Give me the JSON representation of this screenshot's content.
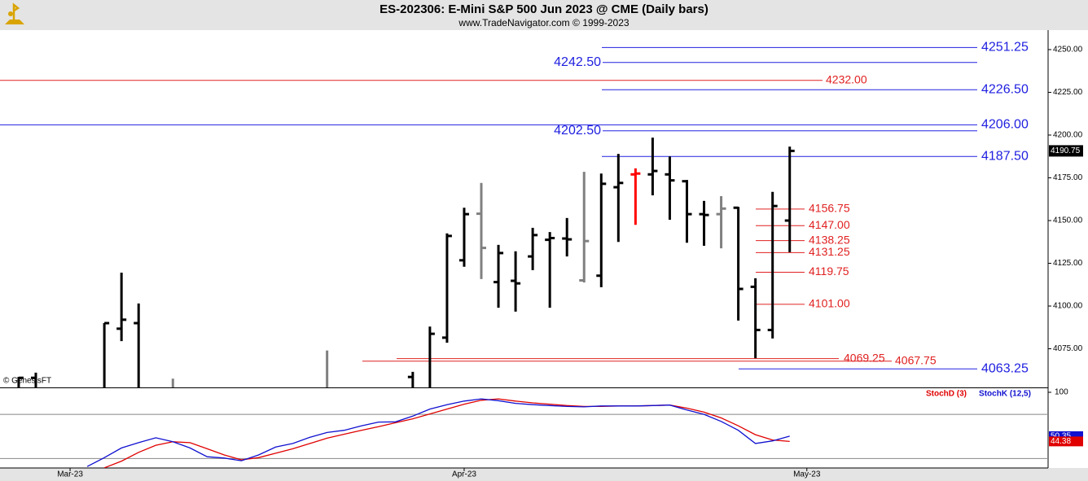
{
  "chart_data": [
    {
      "type": "ohlc",
      "title": "ES-202306:  E-Mini S&P 500 Jun 2023 @ CME  (Daily bars)",
      "subtitle": "www.TradeNavigator.com © 1999-2023",
      "watermark": "© GenesisFT",
      "x": [
        -3,
        -2,
        2,
        3,
        4,
        6,
        15,
        20,
        21,
        22,
        23,
        24,
        25,
        26,
        27,
        28,
        29,
        30,
        31,
        32,
        33,
        34,
        35,
        36,
        37,
        38,
        39,
        40,
        41,
        42
      ],
      "open": [
        4040,
        4058,
        4050,
        4086.75,
        4090,
        4030,
        4040,
        4058.5,
        4040,
        4081.5,
        4126.75,
        4154,
        4114,
        4114.75,
        4129,
        4138.75,
        4139.5,
        4115,
        4117.75,
        4169.5,
        4177,
        4177,
        4177,
        4173,
        4153.75,
        4153.75,
        4157.5,
        4111.25,
        4086,
        4150
      ],
      "high": [
        4058.5,
        4061,
        4090,
        4119.5,
        4101.5,
        4057.5,
        4074,
        4061.5,
        4088,
        4142.5,
        4157.5,
        4172,
        4135.75,
        4132,
        4145.75,
        4143.25,
        4151.5,
        4178.5,
        4177.5,
        4189,
        4180.5,
        4198.5,
        4187.5,
        4173.75,
        4161.5,
        4164.25,
        4158,
        4116.25,
        4166.75,
        4193.25
      ],
      "low": [
        4020,
        4030,
        4040,
        4079.5,
        4030,
        4010,
        4010,
        4040,
        4030,
        4078.5,
        4123,
        4115.75,
        4099,
        4096.75,
        4121,
        4099,
        4129,
        4113.75,
        4111,
        4137.5,
        4147.5,
        4164.75,
        4150.5,
        4137,
        4135.25,
        4133.75,
        4091.5,
        4069.5,
        4081,
        4131.5
      ],
      "close": [
        4058,
        4040,
        4090,
        4092,
        4035,
        4020,
        4030,
        4050,
        4083.75,
        4141,
        4153.75,
        4134,
        4131,
        4113.25,
        4141.5,
        4139.75,
        4139,
        4138,
        4171.5,
        4172,
        4177.5,
        4179,
        4173.5,
        4153.75,
        4153.25,
        4157,
        4110,
        4086,
        4158.5,
        4190.75
      ],
      "colors": [
        "#000000",
        "#000000",
        "#000000",
        "#000000",
        "#000000",
        "#808080",
        "#808080",
        "#000000",
        "#000000",
        "#000000",
        "#000000",
        "#808080",
        "#000000",
        "#000000",
        "#000000",
        "#000000",
        "#000000",
        "#808080",
        "#000000",
        "#000000",
        "#ff0000",
        "#000000",
        "#000000",
        "#000000",
        "#000000",
        "#808080",
        "#000000",
        "#000000",
        "#000000",
        "#000000"
      ],
      "xlim": [
        -4.09,
        57.08
      ],
      "ylim": [
        4052.4,
        4261.4
      ],
      "yticks": [
        {
          "value": 4075,
          "label": "4075.00"
        },
        {
          "value": 4100,
          "label": "4100.00"
        },
        {
          "value": 4125,
          "label": "4125.00"
        },
        {
          "value": 4150,
          "label": "4150.00"
        },
        {
          "value": 4175,
          "label": "4175.00"
        },
        {
          "value": 4200,
          "label": "4200.00"
        },
        {
          "value": 4225,
          "label": "4225.00"
        },
        {
          "value": 4250,
          "label": "4250.00"
        }
      ],
      "xticks": [
        {
          "value": 0,
          "label": "Mar-23"
        },
        {
          "value": 23,
          "label": "Apr-23"
        },
        {
          "value": 43,
          "label": "May-23"
        }
      ],
      "levels": [
        {
          "value": 4251.25,
          "label": "4251.25",
          "color": "#2020e0"
        },
        {
          "value": 4242.5,
          "label": "4242.50",
          "color": "#2020e0"
        },
        {
          "value": 4232,
          "label": "4232.00",
          "color": "#e02020"
        },
        {
          "value": 4226.5,
          "label": "4226.50",
          "color": "#2020e0"
        },
        {
          "value": 4206,
          "label": "4206.00",
          "color": "#2020e0"
        },
        {
          "value": 4202.5,
          "label": "4202.50",
          "color": "#2020e0"
        },
        {
          "value": 4187.5,
          "label": "4187.50",
          "color": "#2020e0"
        },
        {
          "value": 4156.75,
          "label": "4156.75",
          "color": "#e02020"
        },
        {
          "value": 4147,
          "label": "4147.00",
          "color": "#e02020"
        },
        {
          "value": 4138.25,
          "label": "4138.25",
          "color": "#e02020"
        },
        {
          "value": 4131.25,
          "label": "4131.25",
          "color": "#e02020"
        },
        {
          "value": 4119.75,
          "label": "4119.75",
          "color": "#e02020"
        },
        {
          "value": 4101,
          "label": "4101.00",
          "color": "#e02020"
        },
        {
          "value": 4069.25,
          "label": "4069.25",
          "color": "#e02020"
        },
        {
          "value": 4067.75,
          "label": "4067.75",
          "color": "#e02020"
        },
        {
          "value": 4063.25,
          "label": "4063.25",
          "color": "#2020e0"
        }
      ]
    },
    {
      "type": "line",
      "x": [
        1,
        2,
        3,
        4,
        5,
        6,
        7,
        8,
        9,
        10,
        11,
        12,
        13,
        14,
        15,
        16,
        17,
        18,
        19,
        20,
        21,
        22,
        23,
        24,
        25,
        26,
        27,
        28,
        29,
        30,
        31,
        32,
        33,
        34,
        35,
        36,
        37,
        38,
        39,
        40,
        41,
        42
      ],
      "series": [
        {
          "name": "StochD (3)",
          "color": "#e00000",
          "values": [
            null,
            14.5,
            22,
            32,
            40,
            44,
            43,
            36,
            29,
            23.5,
            26,
            31,
            36,
            42,
            48,
            52.5,
            57,
            61,
            65.5,
            70,
            75.5,
            81,
            86.5,
            91,
            92.5,
            90,
            88,
            86.5,
            85,
            84,
            84,
            84.5,
            84.5,
            85,
            85.5,
            82,
            77.5,
            71,
            62,
            52,
            46,
            44.38
          ]
        },
        {
          "name": "StochK (12,5)",
          "color": "#1010d0",
          "values": [
            16,
            26,
            37,
            43,
            48.5,
            44,
            37,
            27,
            25.5,
            22.5,
            29,
            38,
            42,
            49,
            54.5,
            57,
            62,
            66.3,
            66.5,
            73,
            81,
            86,
            90,
            92.5,
            90.5,
            87.5,
            86,
            85,
            84,
            83.5,
            84.5,
            84.5,
            84.5,
            85,
            85.5,
            80,
            75,
            67,
            57,
            42,
            45,
            50.35
          ]
        }
      ],
      "xlim": [
        -4.09,
        57.08
      ],
      "ylim": [
        14.3,
        104.6
      ],
      "yticks": [
        100
      ],
      "hlines": [
        75,
        25
      ]
    }
  ]
}
